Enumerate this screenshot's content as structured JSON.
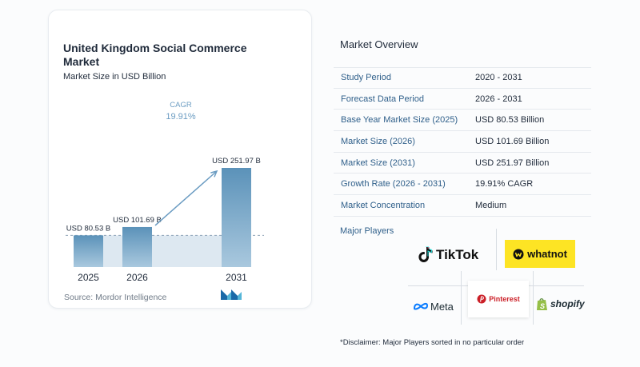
{
  "chart_data": {
    "type": "bar",
    "title": "United Kingdom Social Commerce Market",
    "subtitle": "Market Size in USD Billion",
    "categories": [
      "2025",
      "2026",
      "2031"
    ],
    "values": [
      80.53,
      101.69,
      251.97
    ],
    "value_labels": [
      "USD 80.53 B",
      "USD 101.69 B",
      "USD 251.97 B"
    ],
    "cagr_label": "CAGR",
    "cagr_value": "19.91%",
    "ylim": [
      0,
      270
    ],
    "colors": {
      "bar": "#5b92b9",
      "bar_light": "#a9c8de",
      "band": "#dde8f1",
      "arrow": "#6b9cc2",
      "cagr_text": "#6b9cc2"
    },
    "legend": "none",
    "grid": false
  },
  "source": "Source:  Mordor Intelligence",
  "overview": {
    "title": "Market Overview",
    "rows": [
      {
        "label": "Study Period",
        "value": "2020 - 2031"
      },
      {
        "label": "Forecast Data Period",
        "value": "2026 - 2031"
      },
      {
        "label": "Base Year Market Size (2025)",
        "value": "USD 80.53 Billion"
      },
      {
        "label": "Market Size (2026)",
        "value": "USD 101.69 Billion"
      },
      {
        "label": "Market Size (2031)",
        "value": "USD 251.97 Billion"
      },
      {
        "label": "Growth Rate (2026 - 2031)",
        "value": "19.91% CAGR"
      },
      {
        "label": "Market Concentration",
        "value": "Medium"
      }
    ]
  },
  "players": {
    "title": "Major Players",
    "tiktok": "TikTok",
    "whatnot": "whatnot",
    "pinterest": "Pinterest",
    "meta": "Meta",
    "shopify": "shopify"
  },
  "disclaimer": "*Disclaimer: Major Players sorted in no particular order"
}
